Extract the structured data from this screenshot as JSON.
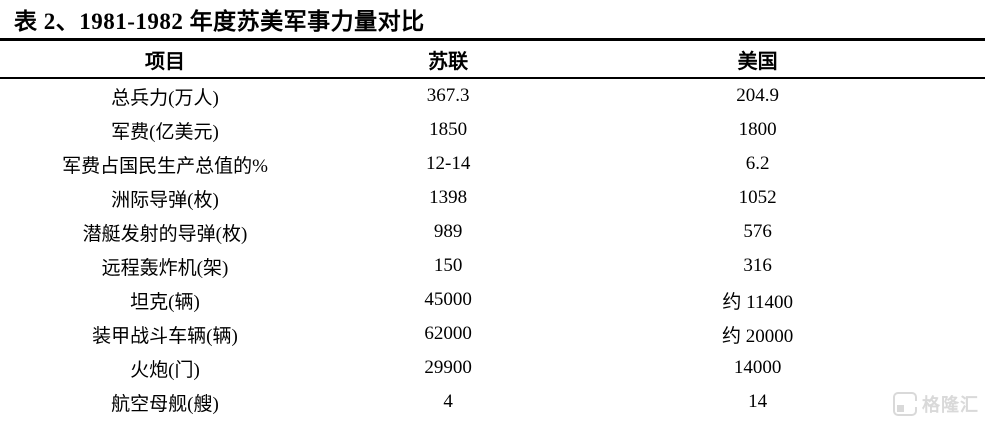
{
  "title": "表 2、1981-1982 年度苏美军事力量对比",
  "watermark": {
    "brand": "格隆汇"
  },
  "colors": {
    "text": "#000000",
    "background": "#ffffff",
    "rule": "#000000",
    "watermark": "#d9d9d9"
  },
  "table": {
    "headers": [
      "项目",
      "苏联",
      "美国"
    ],
    "rows": [
      [
        "总兵力(万人)",
        "367.3",
        "204.9"
      ],
      [
        "军费(亿美元)",
        "1850",
        "1800"
      ],
      [
        "军费占国民生产总值的%",
        "12-14",
        "6.2"
      ],
      [
        "洲际导弹(枚)",
        "1398",
        "1052"
      ],
      [
        "潜艇发射的导弹(枚)",
        "989",
        "576"
      ],
      [
        "远程轰炸机(架)",
        "150",
        "316"
      ],
      [
        "坦克(辆)",
        "45000",
        "约 11400"
      ],
      [
        "装甲战斗车辆(辆)",
        "62000",
        "约 20000"
      ],
      [
        "火炮(门)",
        "29900",
        "14000"
      ],
      [
        "航空母舰(艘)",
        "4",
        "14"
      ]
    ]
  },
  "chart_data": {
    "type": "table",
    "title": "表 2、1981-1982 年度苏美军事力量对比",
    "columns": [
      "项目",
      "苏联",
      "美国"
    ],
    "rows": [
      {
        "item": "总兵力(万人)",
        "ussr": 367.3,
        "usa": 204.9
      },
      {
        "item": "军费(亿美元)",
        "ussr": 1850,
        "usa": 1800
      },
      {
        "item": "军费占国民生产总值的%",
        "ussr": "12-14",
        "usa": 6.2
      },
      {
        "item": "洲际导弹(枚)",
        "ussr": 1398,
        "usa": 1052
      },
      {
        "item": "潜艇发射的导弹(枚)",
        "ussr": 989,
        "usa": 576
      },
      {
        "item": "远程轰炸机(架)",
        "ussr": 150,
        "usa": 316
      },
      {
        "item": "坦克(辆)",
        "ussr": 45000,
        "usa": "约 11400"
      },
      {
        "item": "装甲战斗车辆(辆)",
        "ussr": 62000,
        "usa": "约 20000"
      },
      {
        "item": "火炮(门)",
        "ussr": 29900,
        "usa": 14000
      },
      {
        "item": "航空母舰(艘)",
        "ussr": 4,
        "usa": 14
      }
    ]
  }
}
